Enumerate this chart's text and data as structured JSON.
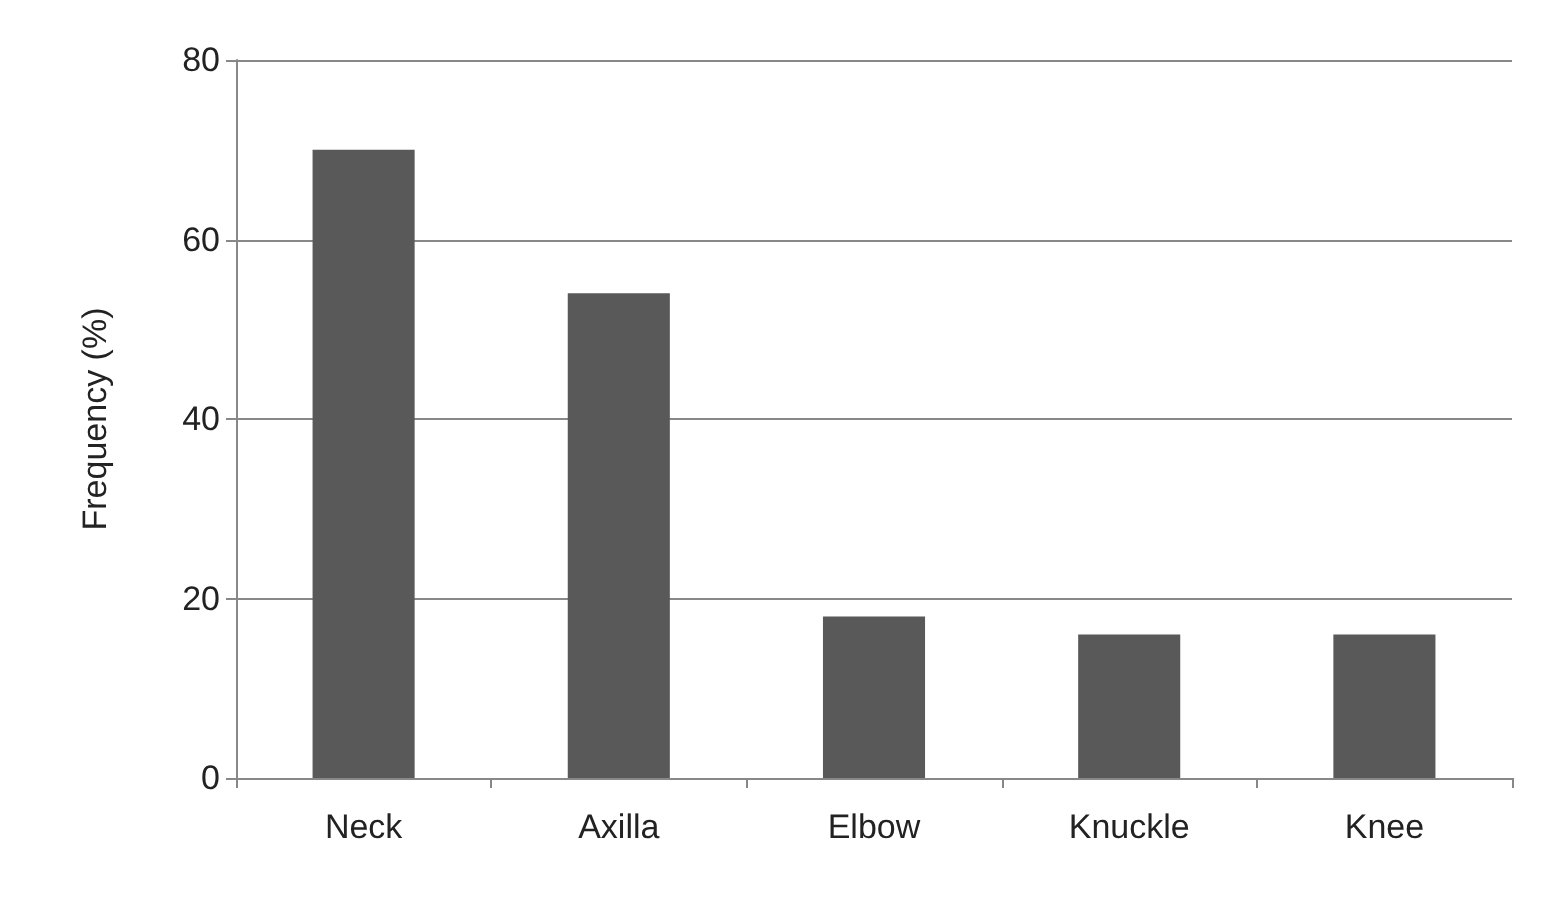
{
  "chart_data": {
    "type": "bar",
    "ylabel": "Frequency (%)",
    "categories": [
      "Neck",
      "Axilla",
      "Elbow",
      "Knuckle",
      "Knee"
    ],
    "values": [
      70,
      54,
      18,
      16,
      16
    ],
    "color": "#595959",
    "ylim": [
      0,
      80
    ],
    "yticks": [
      0,
      20,
      40,
      60,
      80
    ],
    "grid": "y"
  }
}
